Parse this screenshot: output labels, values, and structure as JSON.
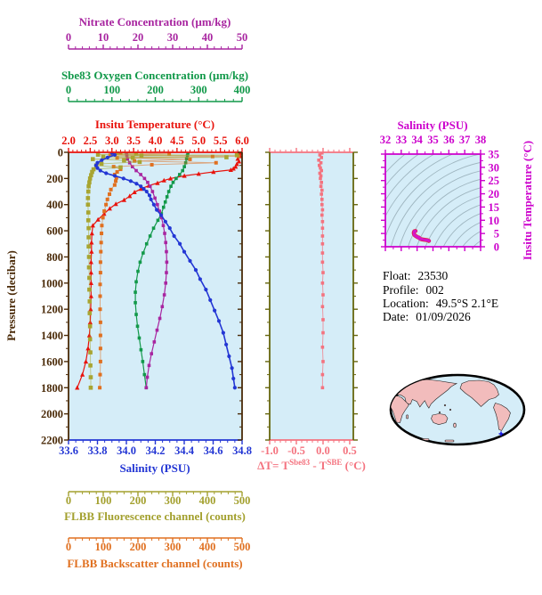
{
  "colors": {
    "plot_bg": "#d5edf8",
    "frame": "#4a2a08",
    "delta_frame": "#66660e",
    "map_land": "#f2bcbc",
    "map_ocean": "#d5edf8",
    "map_outline": "#000000",
    "float_marker": "#1414e6",
    "contour": "#9fb6c0"
  },
  "axes": {
    "nitrate": {
      "title": "Nitrate Concentration (µm/kg)",
      "ticks": [
        "0",
        "10",
        "20",
        "30",
        "40",
        "50"
      ],
      "min": 0,
      "max": 50,
      "color": "#a825a0"
    },
    "oxygen": {
      "title": "Sbe83 Oxygen Concentration (µm/kg)",
      "ticks": [
        "0",
        "100",
        "200",
        "300",
        "400"
      ],
      "min": 0,
      "max": 400,
      "color": "#12994a"
    },
    "temperature": {
      "title": "Insitu Temperature (°C)",
      "ticks": [
        "2.0",
        "2.5",
        "3.0",
        "3.5",
        "4.0",
        "4.5",
        "5.0",
        "5.5",
        "6.0"
      ],
      "min": 2.0,
      "max": 6.0,
      "color": "#e8130c"
    },
    "salinity": {
      "title": "Salinity (PSU)",
      "ticks": [
        "33.6",
        "33.8",
        "34.0",
        "34.2",
        "34.4",
        "34.6",
        "34.8"
      ],
      "min": 33.6,
      "max": 34.8,
      "color": "#2336d4"
    },
    "fluorescence": {
      "title": "FLBB Fluorescence channel (counts)",
      "ticks": [
        "0",
        "100",
        "200",
        "300",
        "400",
        "500"
      ],
      "min": 0,
      "max": 500,
      "color": "#a3a02e"
    },
    "backscatter": {
      "title": "FLBB Backscatter channel (counts)",
      "ticks": [
        "0",
        "100",
        "200",
        "300",
        "400",
        "500"
      ],
      "min": 0,
      "max": 500,
      "color": "#e07020"
    },
    "pressure": {
      "title": "Pressure (decibar)",
      "ticks": [
        "0",
        "200",
        "400",
        "600",
        "800",
        "1000",
        "1200",
        "1400",
        "1600",
        "1800",
        "2000",
        "2200"
      ],
      "min": 0,
      "max": 2200,
      "color": "#4a2a08"
    },
    "delta": {
      "ticks": [
        "-1.0",
        "-0.5",
        "0.0",
        "0.5"
      ],
      "min": -1.0,
      "max": 0.567,
      "color": "#f4737f",
      "title_parts": {
        "p1": "ΔT= T",
        "s1": "Sbe83",
        "p2": " - T",
        "s2": "SBE",
        "p3": " (°C)"
      }
    },
    "ts_salinity": {
      "title": "Salinity (PSU)",
      "ticks": [
        "32",
        "33",
        "34",
        "35",
        "36",
        "37",
        "38"
      ],
      "min": 32,
      "max": 38,
      "color": "#cc00cc"
    },
    "ts_temperature": {
      "title": "Insitu Temperature (°C)",
      "ticks": [
        "0",
        "5",
        "10",
        "15",
        "20",
        "25",
        "30",
        "35"
      ],
      "min": 0,
      "max": 35,
      "color": "#cc00cc"
    }
  },
  "info": {
    "float": {
      "label": "Float:",
      "value": "23530"
    },
    "profile": {
      "label": "Profile:",
      "value": "002"
    },
    "location": {
      "label": "Location:",
      "value": "49.5°S  2.1°E"
    },
    "date": {
      "label": "Date:",
      "value": "01/09/2026"
    }
  },
  "chart_data": [
    {
      "type": "line",
      "title": "Float profiles vs pressure",
      "ylabel": "Pressure (decibar)",
      "ylim": [
        0,
        2200
      ],
      "series": [
        {
          "name": "Insitu Temperature (°C)",
          "color": "#e8130c",
          "xlim": [
            2.0,
            6.0
          ],
          "p": [
            5,
            15,
            30,
            50,
            70,
            90,
            110,
            125,
            135,
            150,
            165,
            180,
            200,
            215,
            235,
            255,
            280,
            305,
            335,
            365,
            395,
            430,
            470,
            515,
            560,
            620,
            690,
            760,
            840,
            920,
            1000,
            1100,
            1200,
            1300,
            1400,
            1500,
            1600,
            1700,
            1800
          ],
          "v": [
            5.95,
            5.92,
            5.96,
            5.9,
            5.93,
            5.88,
            5.85,
            5.8,
            5.74,
            5.34,
            5.0,
            4.67,
            4.35,
            4.2,
            4.05,
            3.85,
            3.67,
            3.52,
            3.41,
            3.28,
            3.09,
            2.95,
            2.82,
            2.68,
            2.56,
            2.54,
            2.53,
            2.53,
            2.52,
            2.52,
            2.52,
            2.52,
            2.51,
            2.5,
            2.48,
            2.45,
            2.4,
            2.32,
            2.2
          ]
        },
        {
          "name": "Sbe83 Oxygen Concentration (µm/kg)",
          "color": "#12994a",
          "xlim": [
            0,
            400
          ],
          "p": [
            5,
            25,
            50,
            80,
            110,
            140,
            170,
            200,
            230,
            260,
            300,
            340,
            380,
            420,
            470,
            520,
            580,
            640,
            700,
            770,
            840,
            910,
            990,
            1070,
            1150,
            1240,
            1330,
            1420,
            1510,
            1600,
            1700,
            1800
          ],
          "v": [
            275,
            274,
            272,
            270,
            267,
            263,
            256,
            248,
            241,
            236,
            231,
            227,
            223,
            219,
            214,
            206,
            196,
            188,
            180,
            172,
            165,
            160,
            156,
            154,
            154,
            156,
            159,
            163,
            167,
            171,
            175,
            179
          ]
        },
        {
          "name": "Nitrate Concentration (µm/kg)",
          "color": "#a825a0",
          "xlim": [
            0,
            50
          ],
          "p": [
            5,
            25,
            50,
            80,
            110,
            140,
            170,
            200,
            230,
            260,
            300,
            350,
            400,
            450,
            500,
            560,
            620,
            690,
            760,
            840,
            920,
            1000,
            1090,
            1180,
            1270,
            1360,
            1450,
            1540,
            1630,
            1720,
            1800
          ],
          "v": [
            16.7,
            16.8,
            17.0,
            17.6,
            18.4,
            19.5,
            20.8,
            21.9,
            22.8,
            23.5,
            24.2,
            24.9,
            25.6,
            26.2,
            26.8,
            27.3,
            27.7,
            28.0,
            28.2,
            28.3,
            28.2,
            28.0,
            27.6,
            27.0,
            26.3,
            25.5,
            24.7,
            23.9,
            23.2,
            22.7,
            22.4
          ]
        },
        {
          "name": "FLBB Backscatter channel (counts)",
          "color": "#e07020",
          "xlim": [
            0,
            500
          ],
          "p": [
            3,
            12,
            22,
            30,
            32,
            42,
            54,
            66,
            80,
            95,
            110,
            130,
            150,
            170,
            195,
            220,
            250,
            285,
            320,
            360,
            400,
            450,
            500,
            560,
            620,
            690,
            760,
            840,
            920,
            1010,
            1100,
            1200,
            1300,
            1400,
            1500,
            1600,
            1700,
            1800
          ],
          "v": [
            150,
            290,
            120,
            490,
            415,
            140,
            350,
            190,
            425,
            240,
            130,
            150,
            140,
            133,
            138,
            136,
            133,
            122,
            118,
            112,
            108,
            103,
            99,
            96,
            95,
            94,
            93,
            92,
            92,
            91,
            91,
            91,
            92,
            92,
            92,
            92,
            91,
            90
          ]
        },
        {
          "name": "FLBB Fluorescence channel (counts)",
          "color": "#a8a531",
          "xlim": [
            0,
            500
          ],
          "p": [
            3,
            10,
            18,
            22,
            26,
            34,
            38,
            42,
            52,
            62,
            74,
            88,
            100,
            115,
            130,
            150,
            175,
            200,
            230,
            260,
            300,
            350,
            400,
            460,
            520,
            580,
            650,
            720,
            800,
            880,
            960,
            1050,
            1140,
            1230,
            1330,
            1430,
            1530,
            1630,
            1720,
            1800
          ],
          "v": [
            140,
            195,
            85,
            485,
            210,
            100,
            455,
            185,
            70,
            160,
            205,
            95,
            80,
            150,
            72,
            68,
            65,
            62,
            60,
            58,
            57,
            56,
            56,
            57,
            57,
            58,
            58,
            58,
            59,
            59,
            60,
            60,
            61,
            61,
            62,
            62,
            63,
            63,
            64,
            64
          ]
        },
        {
          "name": "Salinity (PSU)",
          "color": "#2336d4",
          "xlim": [
            33.6,
            34.8
          ],
          "p": [
            5,
            20,
            40,
            60,
            80,
            100,
            120,
            140,
            160,
            180,
            200,
            220,
            240,
            260,
            280,
            300,
            330,
            360,
            400,
            440,
            480,
            530,
            580,
            640,
            700,
            760,
            830,
            900,
            970,
            1050,
            1130,
            1210,
            1290,
            1380,
            1470,
            1560,
            1650,
            1730,
            1800
          ],
          "v": [
            33.9,
            33.92,
            33.87,
            33.83,
            33.8,
            33.79,
            33.8,
            33.82,
            33.86,
            33.92,
            33.98,
            34.03,
            34.07,
            34.1,
            34.12,
            34.14,
            34.16,
            34.17,
            34.19,
            34.21,
            34.24,
            34.27,
            34.3,
            34.33,
            34.37,
            34.4,
            34.44,
            34.48,
            34.51,
            34.55,
            34.58,
            34.61,
            34.64,
            34.67,
            34.69,
            34.71,
            34.73,
            34.74,
            34.75
          ]
        }
      ]
    },
    {
      "type": "line",
      "title": "ΔT= TSbe83 - TSBE (°C)",
      "xlim": [
        -1.0,
        0.5
      ],
      "ylabel": "Pressure (decibar)",
      "ylim": [
        0,
        2200
      ],
      "series": [
        {
          "name": "ΔT",
          "color": "#f4737f",
          "xlim": [
            -1.0,
            0.567
          ],
          "p": [
            5,
            20,
            40,
            60,
            80,
            100,
            120,
            140,
            160,
            180,
            200,
            230,
            260,
            290,
            320,
            360,
            400,
            440,
            480,
            530,
            580,
            640,
            700,
            770,
            840,
            920,
            1000,
            1090,
            1180,
            1280,
            1380,
            1490,
            1600,
            1700,
            1800
          ],
          "v": [
            -0.02,
            -0.06,
            -0.03,
            -0.08,
            -0.04,
            -0.07,
            -0.05,
            -0.03,
            -0.06,
            -0.04,
            -0.05,
            -0.03,
            -0.04,
            -0.02,
            -0.03,
            -0.02,
            -0.02,
            -0.01,
            -0.02,
            -0.01,
            -0.01,
            -0.01,
            -0.01,
            -0.01,
            -0.01,
            0.0,
            -0.01,
            0.0,
            -0.01,
            0.0,
            0.0,
            -0.01,
            0.0,
            -0.01,
            -0.01
          ]
        }
      ]
    },
    {
      "type": "scatter",
      "title": "T-S diagram",
      "xlabel": "Salinity (PSU)",
      "xlim": [
        32,
        38
      ],
      "ylabel": "Insitu Temperature (°C)",
      "ylim": [
        0,
        35
      ],
      "points": [
        [
          33.9,
          5.95
        ],
        [
          33.88,
          5.9
        ],
        [
          33.83,
          5.85
        ],
        [
          33.8,
          5.6
        ],
        [
          33.79,
          5.2
        ],
        [
          33.8,
          4.8
        ],
        [
          33.84,
          4.4
        ],
        [
          33.9,
          4.1
        ],
        [
          33.97,
          3.85
        ],
        [
          34.03,
          3.65
        ],
        [
          34.08,
          3.5
        ],
        [
          34.12,
          3.42
        ],
        [
          34.14,
          3.3
        ],
        [
          34.16,
          3.15
        ],
        [
          34.19,
          3.0
        ],
        [
          34.22,
          2.92
        ],
        [
          34.26,
          2.86
        ],
        [
          34.3,
          2.8
        ],
        [
          34.35,
          2.74
        ],
        [
          34.41,
          2.68
        ],
        [
          34.47,
          2.62
        ],
        [
          34.53,
          2.58
        ],
        [
          34.59,
          2.52
        ],
        [
          34.64,
          2.46
        ],
        [
          34.69,
          2.4
        ],
        [
          34.72,
          2.32
        ],
        [
          34.75,
          2.2
        ]
      ]
    }
  ]
}
